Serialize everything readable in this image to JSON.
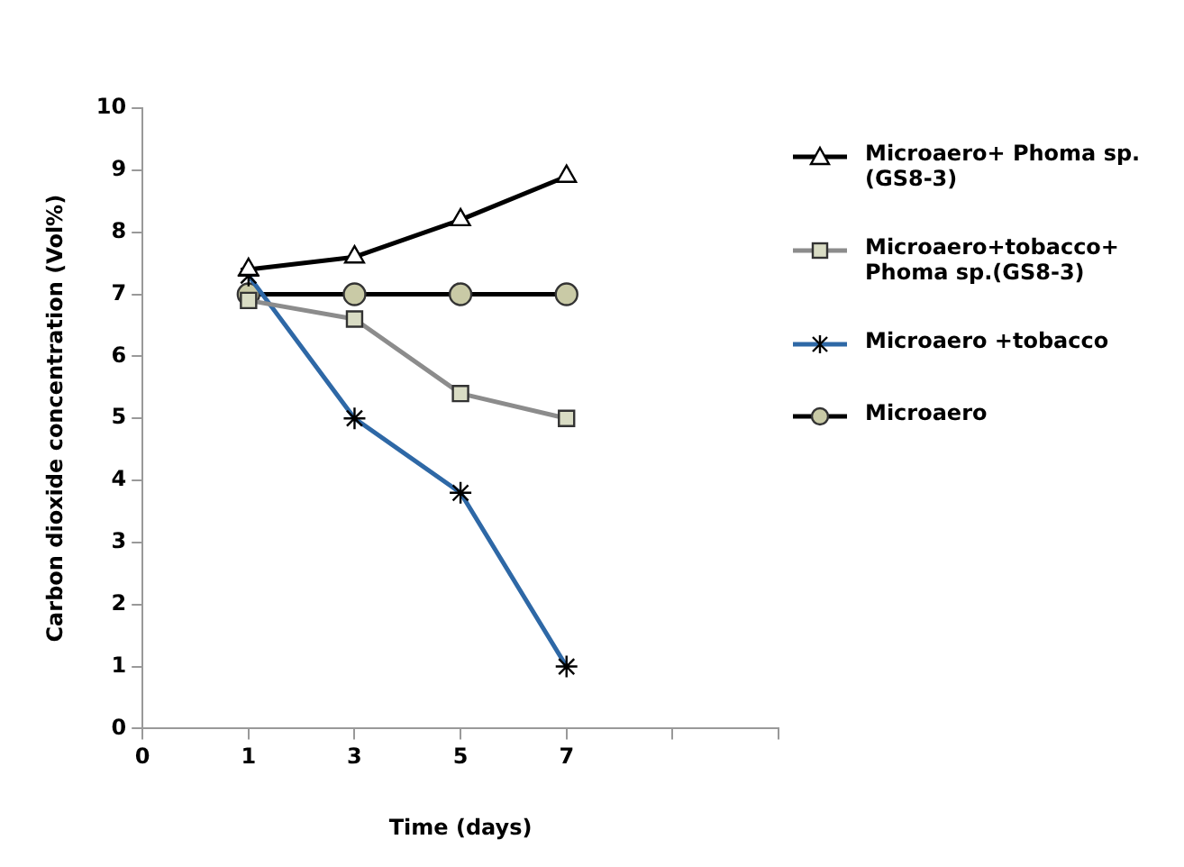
{
  "chart_data": {
    "type": "line",
    "xlabel": "Time (days)",
    "ylabel": "Carbon dioxide concentration (Vol%)",
    "categories": [
      "0",
      "1",
      "3",
      "5",
      "7",
      null,
      null
    ],
    "ylim": [
      0,
      10
    ],
    "yticks": [
      0,
      1,
      2,
      3,
      4,
      5,
      6,
      7,
      8,
      9,
      10
    ],
    "grid": false,
    "legend": "right",
    "series": [
      {
        "name": "Microaero+ Phoma sp. (GS8-3)",
        "color": "#000000",
        "marker": "triangle",
        "values": [
          null,
          7.4,
          7.6,
          8.2,
          8.9,
          null,
          null
        ]
      },
      {
        "name": "Microaero+tobacco+ Phoma sp.(GS8-3)",
        "color": "#8c8c8c",
        "marker": "square",
        "values": [
          null,
          6.9,
          6.6,
          5.4,
          5.0,
          null,
          null
        ]
      },
      {
        "name": "Microaero +tobacco",
        "color": "#2e68a6",
        "marker": "cross",
        "values": [
          null,
          7.3,
          5.0,
          3.8,
          1.0,
          null,
          null
        ]
      },
      {
        "name": "Microaero",
        "color": "#000000",
        "marker": "circle",
        "values": [
          null,
          7,
          7,
          7,
          7,
          null,
          null
        ]
      }
    ]
  }
}
